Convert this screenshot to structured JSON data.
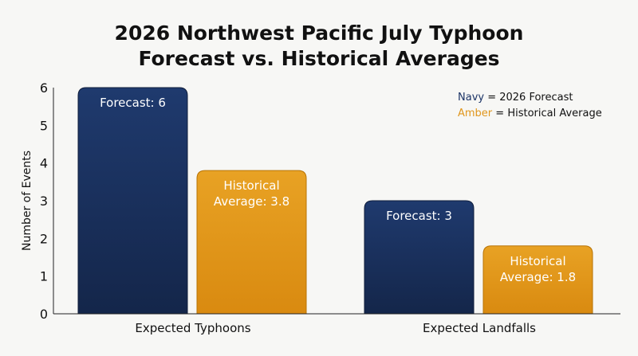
{
  "chart_data": {
    "type": "bar",
    "title": [
      "2026 Northwest Pacific July Typhoon",
      "Forecast vs. Historical Averages"
    ],
    "ylabel": "Number of Events",
    "xlabel": "",
    "ylim": [
      0,
      6
    ],
    "yticks": [
      "0",
      "1",
      "2",
      "3",
      "4",
      "5",
      "6"
    ],
    "categories": [
      "Expected Typhoons",
      "Expected Landfalls"
    ],
    "series": [
      {
        "name": "2026 Forecast",
        "color": "#1c3466",
        "values": [
          6,
          3
        ],
        "labels": [
          [
            "Forecast: 6"
          ],
          [
            "Forecast: 3"
          ]
        ]
      },
      {
        "name": "Historical Average",
        "color": "#e0961c",
        "values": [
          3.8,
          1.8
        ],
        "labels": [
          [
            "Historical",
            "Average: 3.8"
          ],
          [
            "Historical",
            "Average: 1.8"
          ]
        ]
      }
    ],
    "legend": {
      "position": "top-right",
      "entries": [
        {
          "key": "Navy",
          "text": " = 2026 Forecast",
          "color": "#1c3466"
        },
        {
          "key": "Amber",
          "text": " = Historical Average",
          "color": "#e0961c"
        }
      ]
    }
  }
}
